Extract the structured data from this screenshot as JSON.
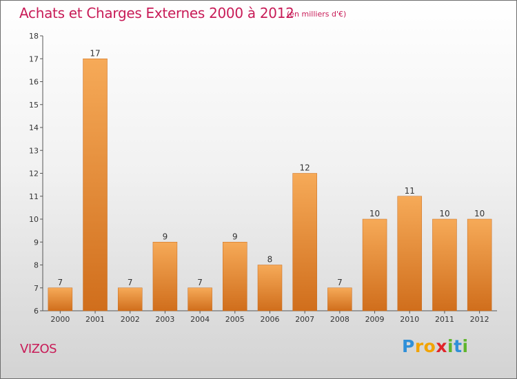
{
  "chart_data": {
    "type": "bar",
    "title": "Achats et Charges Externes 2000 à 2012",
    "subtitle": "(en milliers d'€)",
    "categories": [
      "2000",
      "2001",
      "2002",
      "2003",
      "2004",
      "2005",
      "2006",
      "2007",
      "2008",
      "2009",
      "2010",
      "2011",
      "2012"
    ],
    "values": [
      7,
      17,
      7,
      9,
      7,
      9,
      8,
      12,
      7,
      10,
      11,
      10,
      10
    ],
    "ylim": [
      6,
      18
    ],
    "yticks": [
      6,
      7,
      8,
      9,
      10,
      11,
      12,
      13,
      14,
      15,
      16,
      17,
      18
    ],
    "grid": false,
    "bar_color": "#ee9440"
  },
  "commune": "VIZOS",
  "brand": {
    "name": "Proxiti",
    "letters": [
      {
        "char": "P",
        "color": "#2f8fd8"
      },
      {
        "char": "r",
        "color": "#f2a300"
      },
      {
        "char": "o",
        "color": "#f2a300"
      },
      {
        "char": "x",
        "color": "#e0252b"
      },
      {
        "char": "i",
        "color": "#5fb52c"
      },
      {
        "char": "t",
        "color": "#2f8fd8"
      },
      {
        "char": "i",
        "color": "#5fb52c"
      }
    ]
  },
  "colors": {
    "accent": "#c81b57",
    "bar_light": "#f6aa58",
    "bar_dark": "#d06e1c"
  }
}
